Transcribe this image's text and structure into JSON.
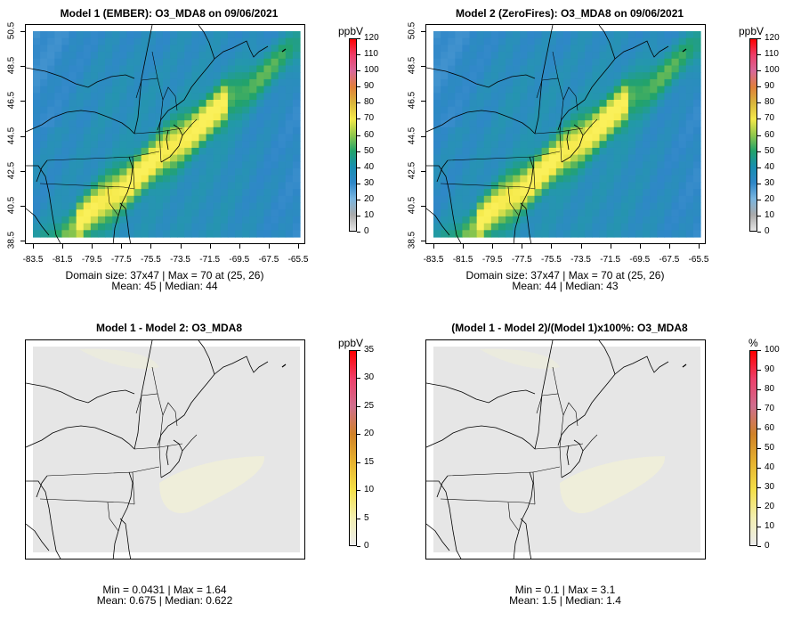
{
  "panels": [
    {
      "title": "Model 1 (EMBER): O3_MDA8 on 09/06/2021",
      "stats_line1": "Domain size: 37x47 | Max = 70 at (25, 26)",
      "stats_line2": "Mean: 45 |  Median: 44",
      "y_ticks": [
        "50.5",
        "48.5",
        "46.5",
        "44.5",
        "42.5",
        "40.5",
        "38.5"
      ],
      "x_ticks": [
        "-83.5",
        "-81.5",
        "-79.5",
        "-77.5",
        "-75.5",
        "-73.5",
        "-71.5",
        "-69.5",
        "-67.5",
        "-65.5"
      ],
      "colorbar": {
        "unit": "ppbV",
        "labels": [
          "120",
          "110",
          "100",
          "90",
          "80",
          "70",
          "60",
          "50",
          "40",
          "30",
          "20",
          "10",
          "0"
        ]
      },
      "field": "ozone"
    },
    {
      "title": "Model 2 (ZeroFires): O3_MDA8 on 09/06/2021",
      "stats_line1": "Domain size: 37x47 | Max = 70 at (25, 26)",
      "stats_line2": "Mean: 44 |  Median: 43",
      "y_ticks": [
        "50.5",
        "48.5",
        "46.5",
        "44.5",
        "42.5",
        "40.5",
        "38.5"
      ],
      "x_ticks": [
        "-83.5",
        "-81.5",
        "-79.5",
        "-77.5",
        "-75.5",
        "-73.5",
        "-71.5",
        "-69.5",
        "-67.5",
        "-65.5"
      ],
      "colorbar": {
        "unit": "ppbV",
        "labels": [
          "120",
          "110",
          "100",
          "90",
          "80",
          "70",
          "60",
          "50",
          "40",
          "30",
          "20",
          "10",
          "0"
        ]
      },
      "field": "ozone"
    },
    {
      "title": "Model 1 - Model 2: O3_MDA8",
      "stats_line1": "Min = 0.0431 | Max = 1.64",
      "stats_line2": "Mean: 0.675 |  Median: 0.622",
      "y_ticks": [],
      "x_ticks": [],
      "colorbar": {
        "unit": "ppbV",
        "labels": [
          "35",
          "30",
          "25",
          "20",
          "15",
          "10",
          "5",
          "0"
        ]
      },
      "field": "diff"
    },
    {
      "title": "(Model 1 - Model 2)/(Model 1)x100%: O3_MDA8",
      "stats_line1": "Min = 0.1 | Max = 3.1",
      "stats_line2": "Mean: 1.5 |  Median: 1.4",
      "y_ticks": [],
      "x_ticks": [],
      "colorbar": {
        "unit": "%",
        "labels": [
          "100",
          "90",
          "80",
          "70",
          "60",
          "50",
          "40",
          "30",
          "20",
          "10",
          "0"
        ]
      },
      "field": "diff"
    }
  ],
  "colors": {
    "ozone_bar": [
      "#ff0000",
      "#ee3f6a",
      "#d8689a",
      "#e0803a",
      "#d9b63c",
      "#f5e94a",
      "#92c84c",
      "#22a36a",
      "#178eb0",
      "#2f87c8",
      "#7ab6e0",
      "#aaaaaa",
      "#e5e5e5"
    ],
    "diff_bar": [
      "#ff0000",
      "#ee3f6a",
      "#cf6f8e",
      "#d08228",
      "#e6b22f",
      "#f4df48",
      "#f3efb0",
      "#ececec"
    ],
    "diff_bg": "#e6e6e6",
    "diff_tint": "#efeed8"
  }
}
